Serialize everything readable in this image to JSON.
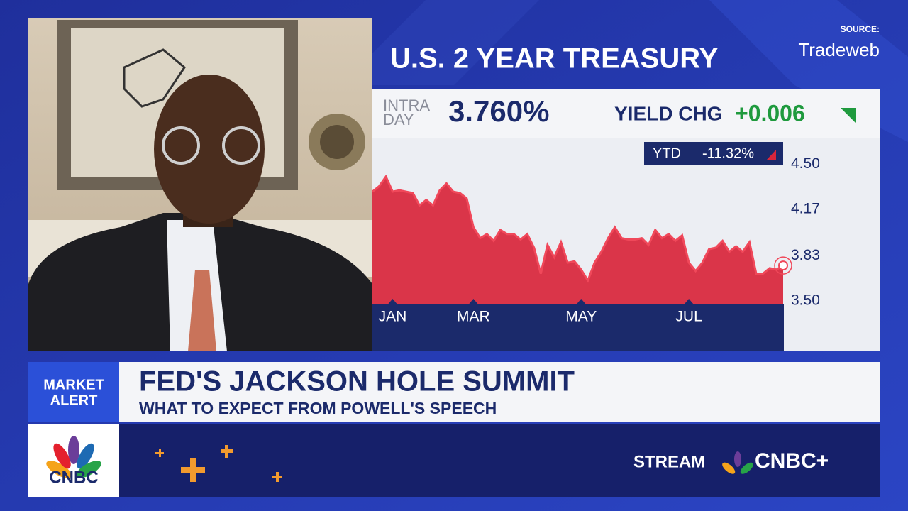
{
  "source_label": "SOURCE:",
  "source_name": "Tradeweb",
  "chart_data": {
    "type": "area",
    "title": "U.S. 2 YEAR TREASURY",
    "intraday_label": [
      "INTRA",
      "DAY"
    ],
    "intraday_value": "3.760%",
    "yield_chg_label": "YIELD CHG",
    "yield_chg_value": "+0.006",
    "ytd_label": "YTD",
    "ytd_value": "-11.32%",
    "categories": [
      null,
      null,
      null,
      "JAN",
      null,
      null,
      null,
      null,
      null,
      null,
      null,
      null,
      null,
      null,
      null,
      "MAR",
      null,
      null,
      null,
      null,
      null,
      null,
      null,
      null,
      null,
      null,
      null,
      null,
      null,
      null,
      null,
      "MAY",
      null,
      null,
      null,
      null,
      null,
      null,
      null,
      null,
      null,
      null,
      null,
      null,
      null,
      null,
      null,
      "JUL",
      null,
      null,
      null,
      null,
      null,
      null,
      null,
      null,
      null,
      null,
      null,
      null,
      null,
      null
    ],
    "values": [
      4.3,
      4.34,
      4.41,
      4.3,
      4.31,
      4.3,
      4.29,
      4.2,
      4.24,
      4.2,
      4.31,
      4.36,
      4.3,
      4.29,
      4.25,
      4.04,
      3.96,
      3.99,
      3.94,
      4.02,
      3.99,
      3.99,
      3.95,
      3.99,
      3.89,
      3.7,
      3.91,
      3.82,
      3.93,
      3.78,
      3.79,
      3.73,
      3.65,
      3.78,
      3.86,
      3.96,
      4.04,
      3.96,
      3.95,
      3.95,
      3.96,
      3.91,
      4.02,
      3.96,
      3.99,
      3.94,
      3.98,
      3.78,
      3.72,
      3.78,
      3.88,
      3.89,
      3.94,
      3.86,
      3.9,
      3.86,
      3.93,
      3.7,
      3.7,
      3.74,
      3.73,
      3.76
    ],
    "color": "#d8253b",
    "ylim": [
      3.48,
      4.69
    ],
    "yticks": [
      {
        "value": 3.5,
        "label": "3.50"
      },
      3.83,
      4.17,
      {
        "value": 4.5,
        "label": "4.50"
      }
    ]
  },
  "alert_label": [
    "MARKET",
    "ALERT"
  ],
  "headline": "FED'S JACKSON HOLE SUMMIT",
  "subheadline": "WHAT TO EXPECT FROM POWELL'S SPEECH",
  "network_logo": "CNBC",
  "stream_label": "STREAM",
  "stream_brand": "CNBC+"
}
